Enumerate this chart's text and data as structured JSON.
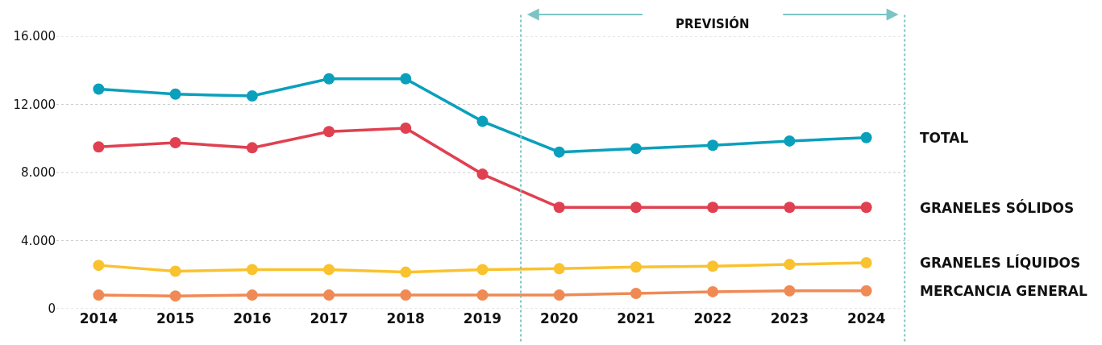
{
  "chart_data": {
    "type": "line",
    "x": [
      2014,
      2015,
      2016,
      2017,
      2018,
      2019,
      2020,
      2021,
      2022,
      2023,
      2024
    ],
    "xlim": [
      2013.45,
      2024.55
    ],
    "xticks": [
      2014,
      2015,
      2016,
      2017,
      2018,
      2019,
      2020,
      2021,
      2022,
      2023,
      2024
    ],
    "ylim": [
      0,
      16000
    ],
    "yticks": [
      {
        "value": 0,
        "label": "0"
      },
      {
        "value": 4000,
        "label": "4.000"
      },
      {
        "value": 8000,
        "label": "8.000"
      },
      {
        "value": 12000,
        "label": "12.000"
      },
      {
        "value": 16000,
        "label": "16.000"
      }
    ],
    "grid": "y",
    "legend": false,
    "marker": "circle",
    "line_style": "solid",
    "series": [
      {
        "name": "TOTAL",
        "color": "#0aa0bc",
        "values": [
          12900,
          12600,
          12500,
          13500,
          13500,
          11000,
          9200,
          9400,
          9600,
          9850,
          10050
        ]
      },
      {
        "name": "GRANELES SÓLIDOS",
        "color": "#e04050",
        "values": [
          9500,
          9750,
          9450,
          10400,
          10600,
          7900,
          5950,
          5950,
          5950,
          5950,
          5950
        ]
      },
      {
        "name": "GRANELES LÍQUIDOS",
        "color": "#f9c22e",
        "values": [
          2550,
          2200,
          2300,
          2300,
          2150,
          2300,
          2350,
          2450,
          2500,
          2600,
          2700
        ]
      },
      {
        "name": "MERCANCIA GENERAL",
        "color": "#f08a55",
        "values": [
          800,
          750,
          800,
          800,
          800,
          800,
          800,
          900,
          1000,
          1050,
          1050
        ]
      }
    ],
    "annotations": [
      "PREVISIÓN"
    ],
    "ref_lines": [
      {
        "axis": "x",
        "value": 2019.5,
        "color": "#7cc4c4",
        "line_style": "dotted"
      },
      {
        "axis": "x",
        "value": 2024.5,
        "color": "#7cc4c4",
        "line_style": "dotted"
      }
    ]
  }
}
